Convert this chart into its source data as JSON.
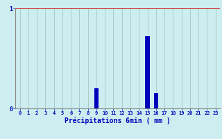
{
  "categories": [
    0,
    1,
    2,
    3,
    4,
    5,
    6,
    7,
    8,
    9,
    10,
    11,
    12,
    13,
    14,
    15,
    16,
    17,
    18,
    19,
    20,
    21,
    22,
    23
  ],
  "values": [
    0,
    0,
    0,
    0,
    0,
    0,
    0,
    0,
    0,
    0.2,
    0,
    0,
    0,
    0,
    0,
    0.72,
    0.15,
    0,
    0,
    0,
    0,
    0,
    0,
    0
  ],
  "bar_color": "#0000bb",
  "background_color": "#cceef0",
  "plot_bg_color": "#cceef0",
  "grid_color": "#aacccc",
  "grid_top_color": "#cc4444",
  "xlabel": "Précipitations 6min ( mm )",
  "xlabel_color": "#0000bb",
  "tick_color": "#0000bb",
  "ylim": [
    0,
    1.0
  ],
  "xlim": [
    -0.5,
    23.5
  ],
  "yticks": [
    0,
    1
  ],
  "xticks": [
    0,
    1,
    2,
    3,
    4,
    5,
    6,
    7,
    8,
    9,
    10,
    11,
    12,
    13,
    14,
    15,
    16,
    17,
    18,
    19,
    20,
    21,
    22,
    23
  ],
  "bar_width": 0.5
}
